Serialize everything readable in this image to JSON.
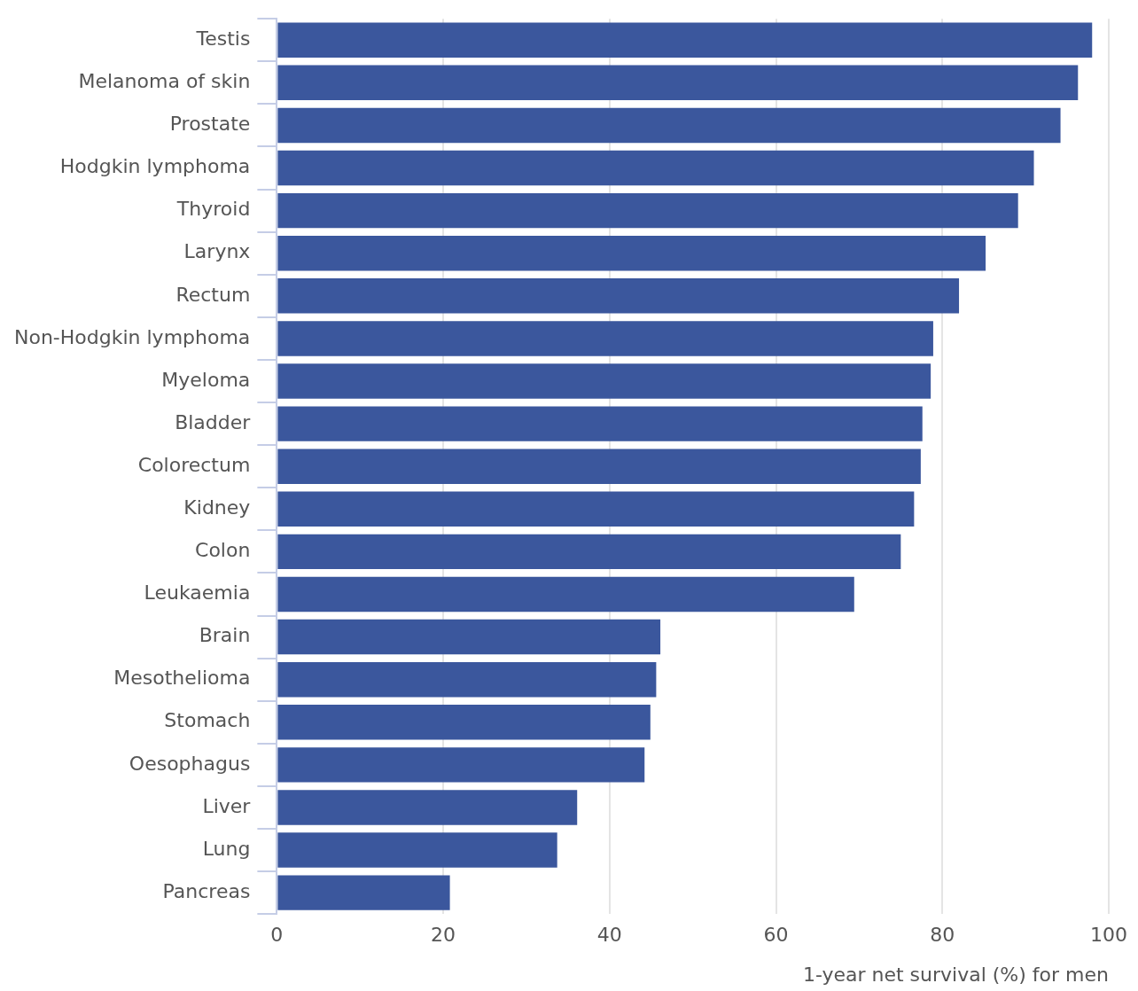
{
  "chart_data": {
    "type": "bar",
    "orientation": "horizontal",
    "xlabel": "1-year net survival (%) for men",
    "categories": [
      "Testis",
      "Melanoma of skin",
      "Prostate",
      "Hodgkin lymphoma",
      "Thyroid",
      "Larynx",
      "Rectum",
      "Non-Hodgkin lymphoma",
      "Myeloma",
      "Bladder",
      "Colorectum",
      "Kidney",
      "Colon",
      "Leukaemia",
      "Brain",
      "Mesothelioma",
      "Stomach",
      "Oesophagus",
      "Liver",
      "Lung",
      "Pancreas"
    ],
    "values": [
      98.0,
      96.3,
      94.2,
      91.0,
      89.1,
      85.2,
      82.0,
      78.9,
      78.6,
      77.6,
      77.4,
      76.6,
      75.0,
      69.4,
      46.1,
      45.6,
      44.9,
      44.2,
      36.1,
      33.7,
      20.8
    ],
    "color": "#3b579d",
    "xlim": [
      0,
      100
    ],
    "xticks": [
      0,
      20,
      40,
      60,
      80,
      100
    ],
    "grid": "x",
    "legend": false
  }
}
